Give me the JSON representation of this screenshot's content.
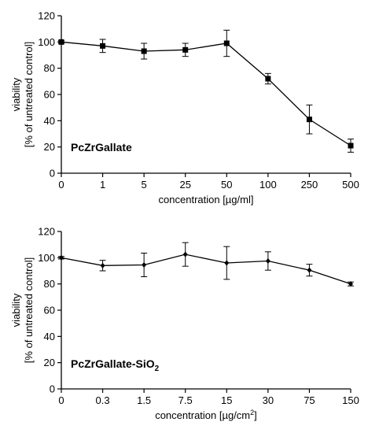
{
  "chart_data": [
    {
      "type": "line",
      "categories": [
        "0",
        "1",
        "5",
        "25",
        "50",
        "100",
        "250",
        "500"
      ],
      "series": [
        {
          "values": [
            100,
            97,
            93,
            94,
            99,
            72,
            41,
            21
          ],
          "errors": [
            1,
            5,
            6,
            5,
            10,
            4,
            11,
            5
          ],
          "marker": "square"
        }
      ],
      "panel_label": "PcZrGallate",
      "xlabel": "concentration [µg/ml]",
      "ylabel_line1": "viability",
      "ylabel_line2": "[% of untreated control]",
      "ylim": [
        0,
        120
      ],
      "yticks": [
        0,
        20,
        40,
        60,
        80,
        100,
        120
      ],
      "grid": false,
      "legend": "none"
    },
    {
      "type": "line",
      "categories": [
        "0",
        "0.3",
        "1.5",
        "7.5",
        "15",
        "30",
        "75",
        "150"
      ],
      "series": [
        {
          "values": [
            100,
            94,
            94.5,
            102.5,
            96,
            97.5,
            90.5,
            80
          ],
          "errors": [
            1,
            4,
            9,
            9,
            12.5,
            7,
            4.5,
            1.5
          ],
          "marker": "diamond"
        }
      ],
      "panel_label_main": "PcZrGallate-SiO",
      "panel_label_sub": "2",
      "xlabel_main": "concentration [µg/cm",
      "xlabel_sup": "2",
      "xlabel_end": "]",
      "ylabel_line1": "viability",
      "ylabel_line2": "[% of untreated control]",
      "ylim": [
        0,
        120
      ],
      "yticks": [
        0,
        20,
        40,
        60,
        80,
        100,
        120
      ],
      "grid": false,
      "legend": "none"
    }
  ]
}
